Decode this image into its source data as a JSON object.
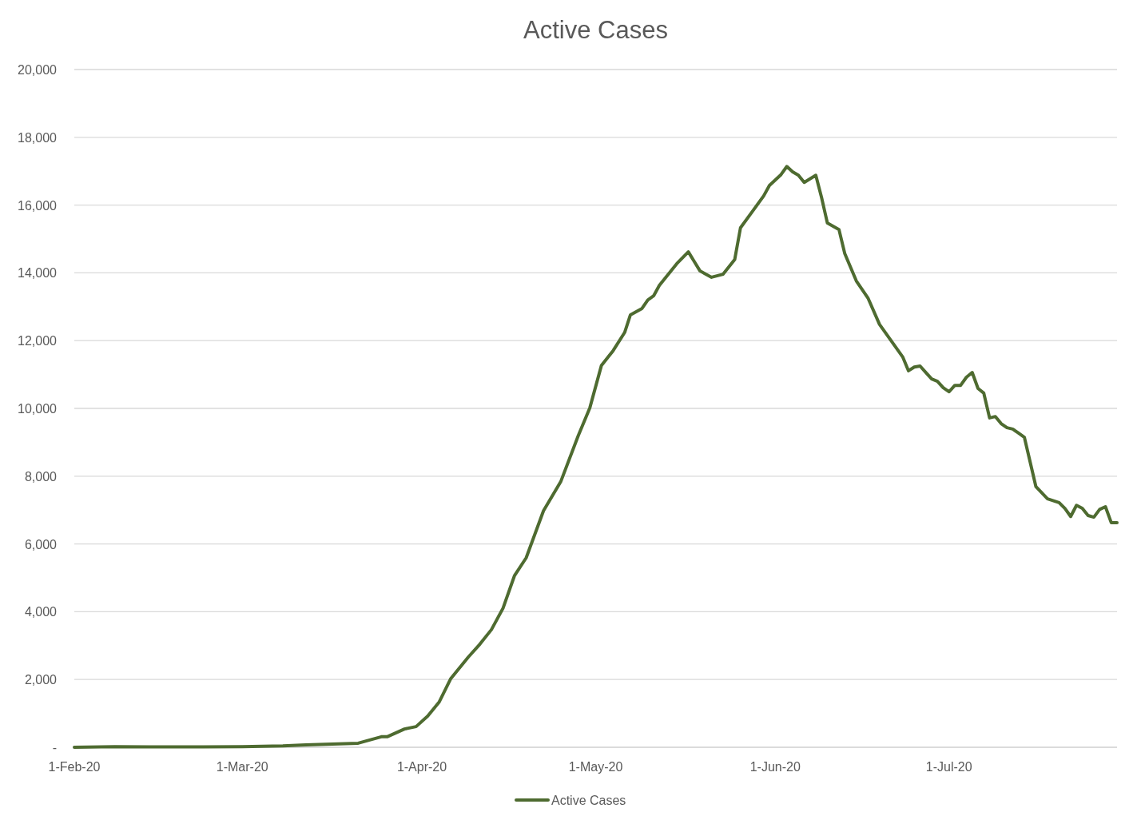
{
  "chart_data": {
    "type": "line",
    "title": "Active Cases",
    "legend": "bottom",
    "grid": "y",
    "marker": "none",
    "line_style": "solid",
    "x": [
      "2020-02-01",
      "2020-02-08",
      "2020-02-14",
      "2020-02-20",
      "2020-03-01",
      "2020-03-08",
      "2020-03-12",
      "2020-03-21",
      "2020-03-25",
      "2020-03-26",
      "2020-03-29",
      "2020-03-31",
      "2020-04-02",
      "2020-04-04",
      "2020-04-06",
      "2020-04-09",
      "2020-04-11",
      "2020-04-13",
      "2020-04-15",
      "2020-04-17",
      "2020-04-19",
      "2020-04-22",
      "2020-04-25",
      "2020-04-28",
      "2020-04-30",
      "2020-05-02",
      "2020-05-04",
      "2020-05-06",
      "2020-05-07",
      "2020-05-09",
      "2020-05-10",
      "2020-05-11",
      "2020-05-12",
      "2020-05-15",
      "2020-05-17",
      "2020-05-18",
      "2020-05-19",
      "2020-05-20",
      "2020-05-21",
      "2020-05-23",
      "2020-05-25",
      "2020-05-26",
      "2020-05-28",
      "2020-05-30",
      "2020-05-31",
      "2020-06-02",
      "2020-06-03",
      "2020-06-04",
      "2020-06-05",
      "2020-06-06",
      "2020-06-08",
      "2020-06-09",
      "2020-06-10",
      "2020-06-12",
      "2020-06-13",
      "2020-06-15",
      "2020-06-17",
      "2020-06-19",
      "2020-06-23",
      "2020-06-24",
      "2020-06-25",
      "2020-06-26",
      "2020-06-27",
      "2020-06-28",
      "2020-06-29",
      "2020-06-30",
      "2020-07-01",
      "2020-07-02",
      "2020-07-03",
      "2020-07-04",
      "2020-07-05",
      "2020-07-06",
      "2020-07-07",
      "2020-07-08",
      "2020-07-09",
      "2020-07-10",
      "2020-07-11",
      "2020-07-12",
      "2020-07-13",
      "2020-07-14",
      "2020-07-16",
      "2020-07-18",
      "2020-07-20",
      "2020-07-21",
      "2020-07-22",
      "2020-07-23",
      "2020-07-24",
      "2020-07-25",
      "2020-07-26",
      "2020-07-27",
      "2020-07-28",
      "2020-07-29",
      "2020-07-30"
    ],
    "series": [
      {
        "name": "Active Cases",
        "color": "#4e6b30",
        "values": [
          0,
          20,
          10,
          10,
          20,
          40,
          70,
          120,
          310,
          310,
          540,
          610,
          920,
          1340,
          2030,
          2660,
          3040,
          3470,
          4100,
          5070,
          5590,
          6980,
          7850,
          9200,
          10020,
          11270,
          11700,
          12240,
          12760,
          12950,
          13200,
          13320,
          13630,
          14270,
          14620,
          14340,
          14060,
          13960,
          13870,
          13960,
          14390,
          15330,
          15800,
          16270,
          16580,
          16900,
          17140,
          16980,
          16880,
          16670,
          16880,
          16220,
          15470,
          15280,
          14570,
          13760,
          13260,
          12480,
          11520,
          11110,
          11220,
          11250,
          11060,
          10870,
          10800,
          10610,
          10490,
          10680,
          10680,
          10920,
          11060,
          10590,
          10450,
          9720,
          9760,
          9550,
          9430,
          9390,
          9270,
          9150,
          7690,
          7330,
          7220,
          7050,
          6810,
          7140,
          7050,
          6840,
          6790,
          7020,
          7100,
          6630,
          6630
        ]
      }
    ],
    "xlim": [
      "2020-02-01",
      "2020-07-30"
    ],
    "xticks": [
      {
        "value": "2020-02-01",
        "label": "1-Feb-20"
      },
      {
        "value": "2020-03-01",
        "label": "1-Mar-20"
      },
      {
        "value": "2020-04-01",
        "label": "1-Apr-20"
      },
      {
        "value": "2020-05-01",
        "label": "1-May-20"
      },
      {
        "value": "2020-06-01",
        "label": "1-Jun-20"
      },
      {
        "value": "2020-07-01",
        "label": "1-Jul-20"
      }
    ],
    "ylim": [
      0,
      20000
    ],
    "yticks": [
      {
        "value": 0,
        "label": "-"
      },
      {
        "value": 2000,
        "label": "2,000"
      },
      {
        "value": 4000,
        "label": "4,000"
      },
      {
        "value": 6000,
        "label": "6,000"
      },
      {
        "value": 8000,
        "label": "8,000"
      },
      {
        "value": 10000,
        "label": "10,000"
      },
      {
        "value": 12000,
        "label": "12,000"
      },
      {
        "value": 14000,
        "label": "14,000"
      },
      {
        "value": 16000,
        "label": "16,000"
      },
      {
        "value": 18000,
        "label": "18,000"
      },
      {
        "value": 20000,
        "label": "20,000"
      }
    ]
  }
}
